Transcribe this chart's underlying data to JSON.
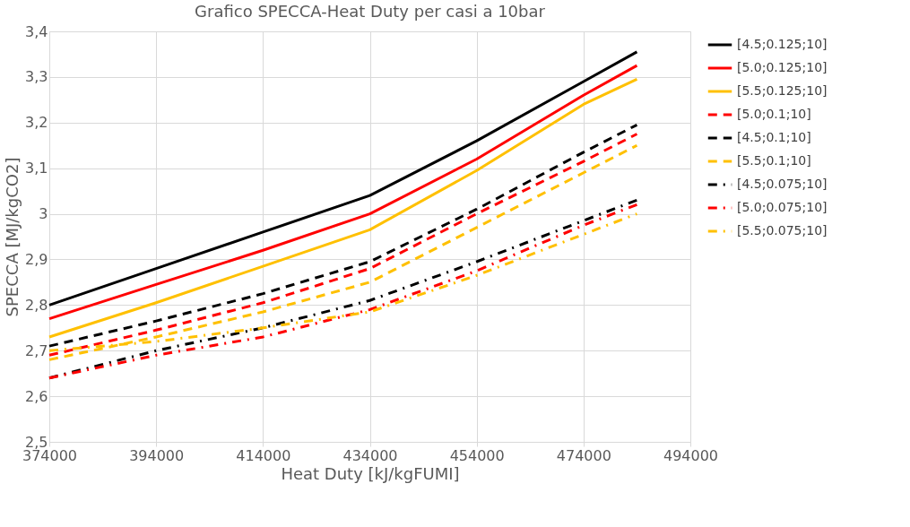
{
  "chart_data": {
    "type": "line",
    "title": "Grafico SPECCA-Heat Duty per casi a 10bar",
    "xlabel": "Heat Duty [kJ/kgFUMI]",
    "ylabel": "SPECCA [MJ/kgCO2]",
    "x": [
      374000,
      394000,
      414000,
      434000,
      454000,
      474000,
      484000
    ],
    "series": [
      {
        "name": "[4.5;0.125;10]",
        "color": "#000000",
        "line_style": "solid",
        "values": [
          2.8,
          2.88,
          2.96,
          3.04,
          3.16,
          3.29,
          3.355
        ]
      },
      {
        "name": "[5.0;0.125;10]",
        "color": "#ff0000",
        "line_style": "solid",
        "values": [
          2.77,
          2.845,
          2.92,
          3.0,
          3.12,
          3.26,
          3.325
        ]
      },
      {
        "name": "[5.5;0.125;10]",
        "color": "#ffc000",
        "line_style": "solid",
        "values": [
          2.73,
          2.805,
          2.885,
          2.965,
          3.095,
          3.24,
          3.295
        ]
      },
      {
        "name": "[5.0;0.1;10]",
        "color": "#ff0000",
        "line_style": "dashed",
        "values": [
          2.69,
          2.745,
          2.805,
          2.88,
          3.0,
          3.115,
          3.175
        ]
      },
      {
        "name": "[4.5;0.1;10]",
        "color": "#000000",
        "line_style": "dashed",
        "values": [
          2.71,
          2.765,
          2.825,
          2.895,
          3.01,
          3.135,
          3.195
        ]
      },
      {
        "name": "[5.5;0.1;10]",
        "color": "#ffc000",
        "line_style": "dashed",
        "values": [
          2.68,
          2.73,
          2.785,
          2.85,
          2.97,
          3.09,
          3.15
        ]
      },
      {
        "name": "[4.5;0.075;10]",
        "color": "#000000",
        "line_style": "dashdot",
        "values": [
          2.64,
          2.7,
          2.75,
          2.81,
          2.895,
          2.985,
          3.03
        ]
      },
      {
        "name": "[5.0;0.075;10]",
        "color": "#ff0000",
        "line_style": "dashdot",
        "values": [
          2.64,
          2.69,
          2.73,
          2.79,
          2.875,
          2.975,
          3.02
        ]
      },
      {
        "name": "[5.5;0.075;10]",
        "color": "#ffc000",
        "line_style": "dashdot",
        "values": [
          2.7,
          2.72,
          2.75,
          2.785,
          2.865,
          2.955,
          3.0
        ]
      }
    ],
    "xlim": [
      374000,
      494000
    ],
    "xticks": [
      374000,
      394000,
      414000,
      434000,
      454000,
      474000,
      494000
    ],
    "ylim": [
      2.5,
      3.4
    ],
    "yticks": [
      {
        "value": 2.5,
        "label": "2,5"
      },
      {
        "value": 2.6,
        "label": "2,6"
      },
      {
        "value": 2.7,
        "label": "2,7"
      },
      {
        "value": 2.8,
        "label": "2,8"
      },
      {
        "value": 2.9,
        "label": "2,9"
      },
      {
        "value": 3,
        "label": "3"
      },
      {
        "value": 3.1,
        "label": "3,1"
      },
      {
        "value": 3.2,
        "label": "3,2"
      },
      {
        "value": 3.3,
        "label": "3,3"
      },
      {
        "value": 3.4,
        "label": "3,4"
      }
    ],
    "grid": true,
    "legend": "right"
  }
}
